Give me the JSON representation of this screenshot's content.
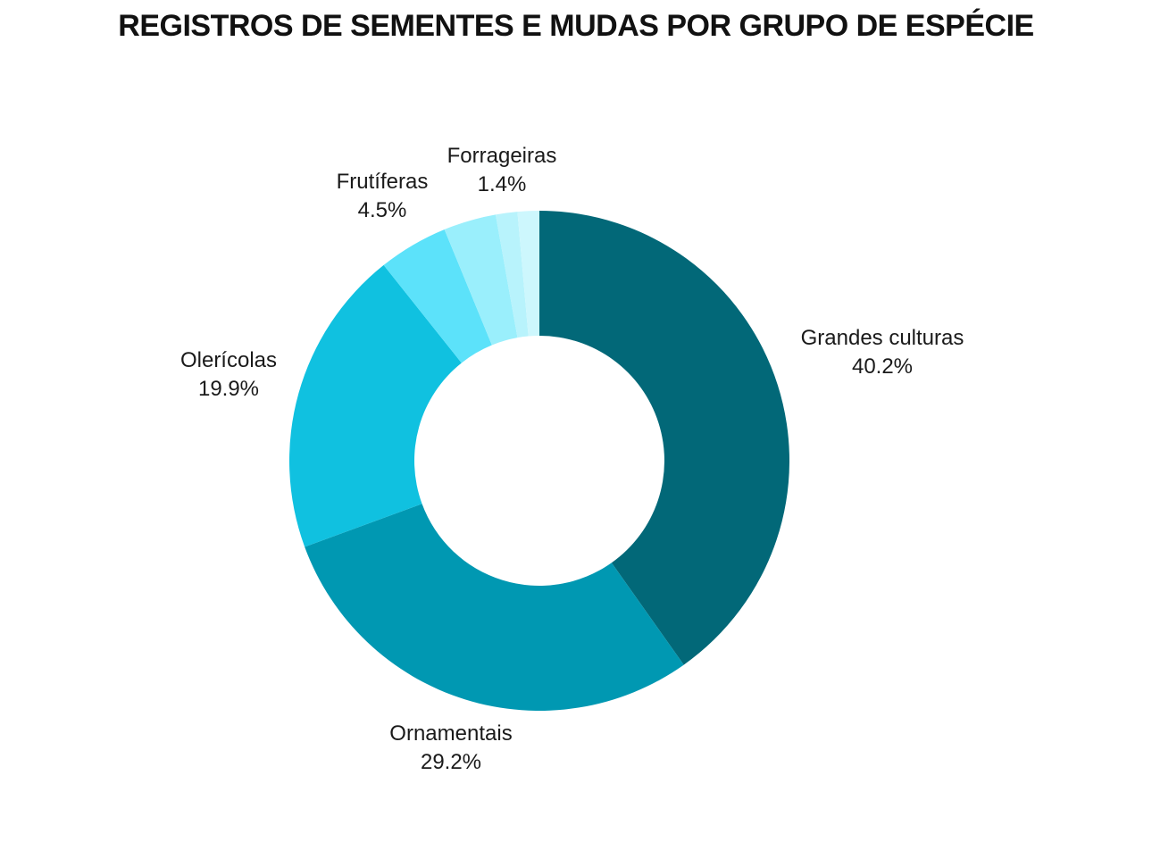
{
  "chart_data": {
    "type": "pie",
    "donut": true,
    "title": "REGISTROS DE SEMENTES E MUDAS POR GRUPO DE ESPÉCIE",
    "slices": [
      {
        "label": "Grandes culturas",
        "value": 40.2,
        "value_label": "40.2%",
        "color": "#026878",
        "show_label": true
      },
      {
        "label": "Ornamentais",
        "value": 29.2,
        "value_label": "29.2%",
        "color": "#0098b2",
        "show_label": true
      },
      {
        "label": "Olerícolas",
        "value": 19.9,
        "value_label": "19.9%",
        "color": "#10c1e0",
        "show_label": true
      },
      {
        "label": "Frutíferas",
        "value": 4.5,
        "value_label": "4.5%",
        "color": "#5ce2fa",
        "show_label": true
      },
      {
        "value": 3.4,
        "color": "#9aeffc",
        "show_label": false
      },
      {
        "value": 1.4,
        "color": "#b8f3fc",
        "show_label": false
      },
      {
        "label": "Forrageiras",
        "value": 1.4,
        "value_label": "1.4%",
        "color": "#cdf7fd",
        "show_label": true
      }
    ],
    "legend": "none"
  }
}
